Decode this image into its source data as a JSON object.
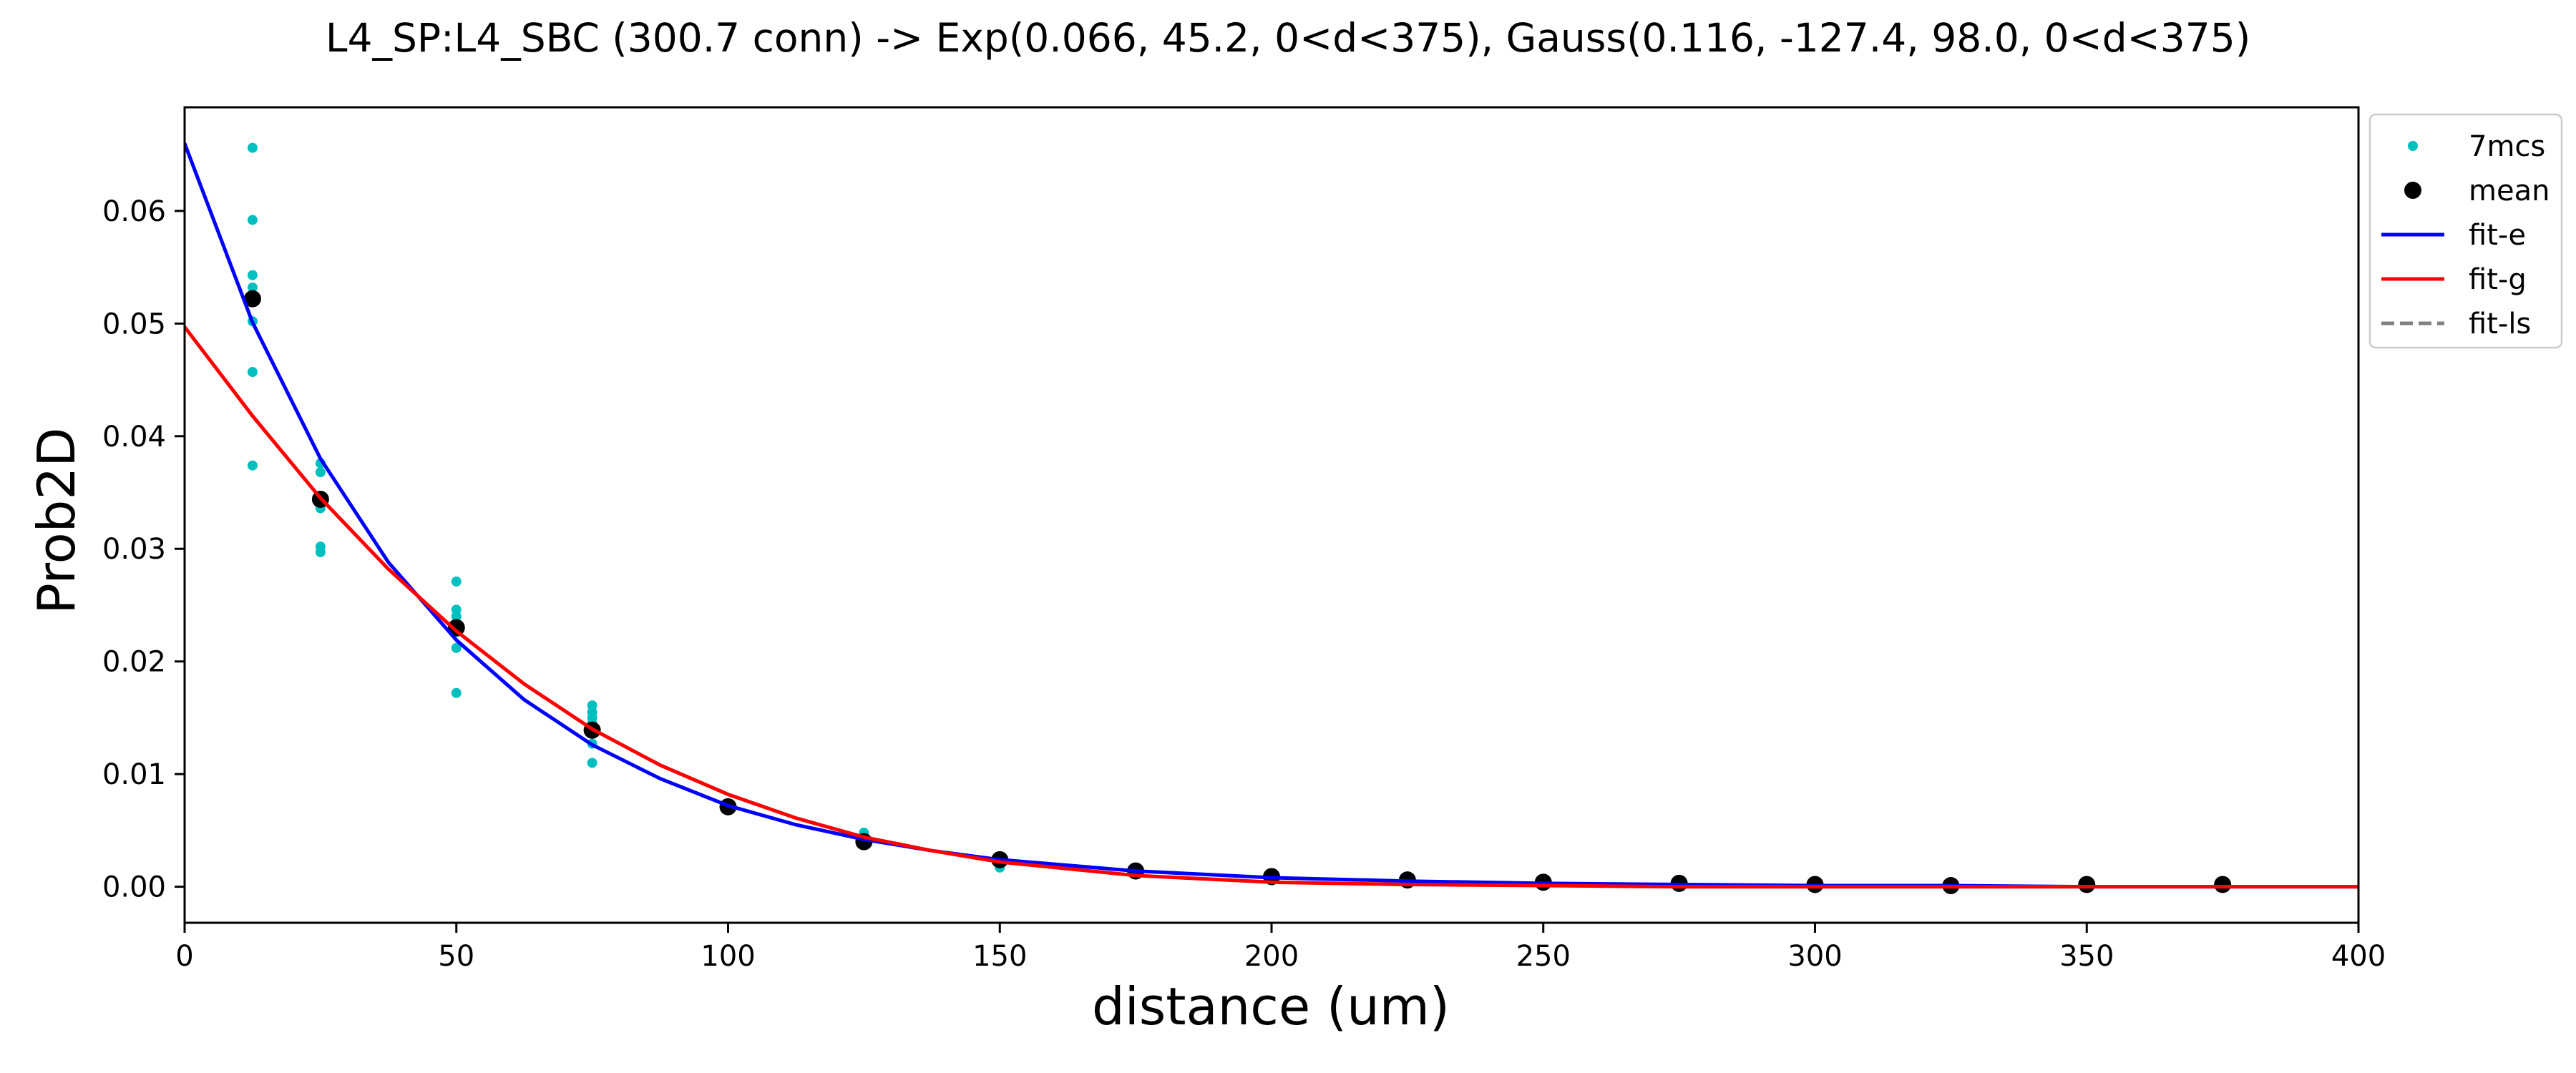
{
  "chart_data": {
    "type": "scatter",
    "title": "L4_SP:L4_SBC (300.7 conn) -> Exp(0.066, 45.2, 0<d<375), Gauss(0.116, -127.4, 98.0, 0<d<375)",
    "xlabel": "distance (um)",
    "ylabel": "Prob2D",
    "xlim": [
      0,
      400
    ],
    "ylim": [
      -0.0032,
      0.0692
    ],
    "xticks": [
      0,
      50,
      100,
      150,
      200,
      250,
      300,
      350,
      400
    ],
    "yticks": [
      0.0,
      0.01,
      0.02,
      0.03,
      0.04,
      0.05,
      0.06
    ],
    "ytick_labels": [
      "0.00",
      "0.01",
      "0.02",
      "0.03",
      "0.04",
      "0.05",
      "0.06"
    ],
    "grid": false,
    "legend_position": "outside-right-top",
    "series": [
      {
        "name": "7mcs",
        "kind": "points",
        "color": "#00bfbf",
        "x": [
          12.5,
          12.5,
          12.5,
          12.5,
          12.5,
          12.5,
          12.5,
          25,
          25,
          25,
          25,
          25,
          25,
          25,
          50,
          50,
          50,
          50,
          50,
          50,
          50,
          75,
          75,
          75,
          75,
          75,
          75,
          75,
          125,
          125,
          150,
          150
        ],
        "y": [
          0.0656,
          0.0592,
          0.0543,
          0.0532,
          0.0502,
          0.0457,
          0.0374,
          0.0376,
          0.0368,
          0.0344,
          0.0336,
          0.0302,
          0.0297,
          0.0343,
          0.0271,
          0.0246,
          0.024,
          0.0226,
          0.0212,
          0.0172,
          0.0231,
          0.0161,
          0.0155,
          0.015,
          0.014,
          0.0127,
          0.011,
          0.0145,
          0.0048,
          0.0038,
          0.0022,
          0.0017
        ]
      },
      {
        "name": "mean",
        "kind": "markers",
        "color": "#000000",
        "x": [
          12.5,
          25,
          50,
          75,
          100,
          125,
          150,
          175,
          200,
          225,
          250,
          275,
          300,
          325,
          350,
          375
        ],
        "y": [
          0.0522,
          0.0344,
          0.023,
          0.0139,
          0.0071,
          0.004,
          0.0024,
          0.0014,
          0.0009,
          0.0006,
          0.0004,
          0.0003,
          0.0002,
          0.0001,
          0.0002,
          0.0002
        ]
      },
      {
        "name": "fit-e",
        "kind": "line",
        "color": "#0000ff",
        "x": [
          0,
          12.5,
          25,
          37.5,
          50,
          62.5,
          75,
          87.5,
          100,
          112.5,
          125,
          137.5,
          150,
          175,
          200,
          225,
          250,
          275,
          300,
          325,
          350,
          375,
          400
        ],
        "y": [
          0.066,
          0.0501,
          0.038,
          0.0288,
          0.0219,
          0.0166,
          0.0126,
          0.0096,
          0.0072,
          0.0055,
          0.0042,
          0.0032,
          0.0024,
          0.0014,
          0.0008,
          0.0005,
          0.0003,
          0.0002,
          0.0001,
          0.0001,
          0.0,
          0.0,
          0.0
        ]
      },
      {
        "name": "fit-g",
        "kind": "line",
        "color": "#ff0000",
        "x": [
          0,
          12.5,
          25,
          37.5,
          50,
          62.5,
          75,
          87.5,
          100,
          112.5,
          125,
          137.5,
          150,
          175,
          200,
          225,
          250,
          275,
          300,
          325,
          350,
          375,
          400
        ],
        "y": [
          0.0497,
          0.0418,
          0.0345,
          0.0282,
          0.0227,
          0.018,
          0.014,
          0.0108,
          0.0082,
          0.0061,
          0.0044,
          0.0032,
          0.0022,
          0.001,
          0.0004,
          0.0002,
          0.0001,
          0.0,
          0.0,
          0.0,
          0.0,
          0.0,
          0.0
        ]
      },
      {
        "name": "fit-ls",
        "kind": "dashed-line",
        "color": "#808080",
        "x": [],
        "y": []
      }
    ]
  }
}
